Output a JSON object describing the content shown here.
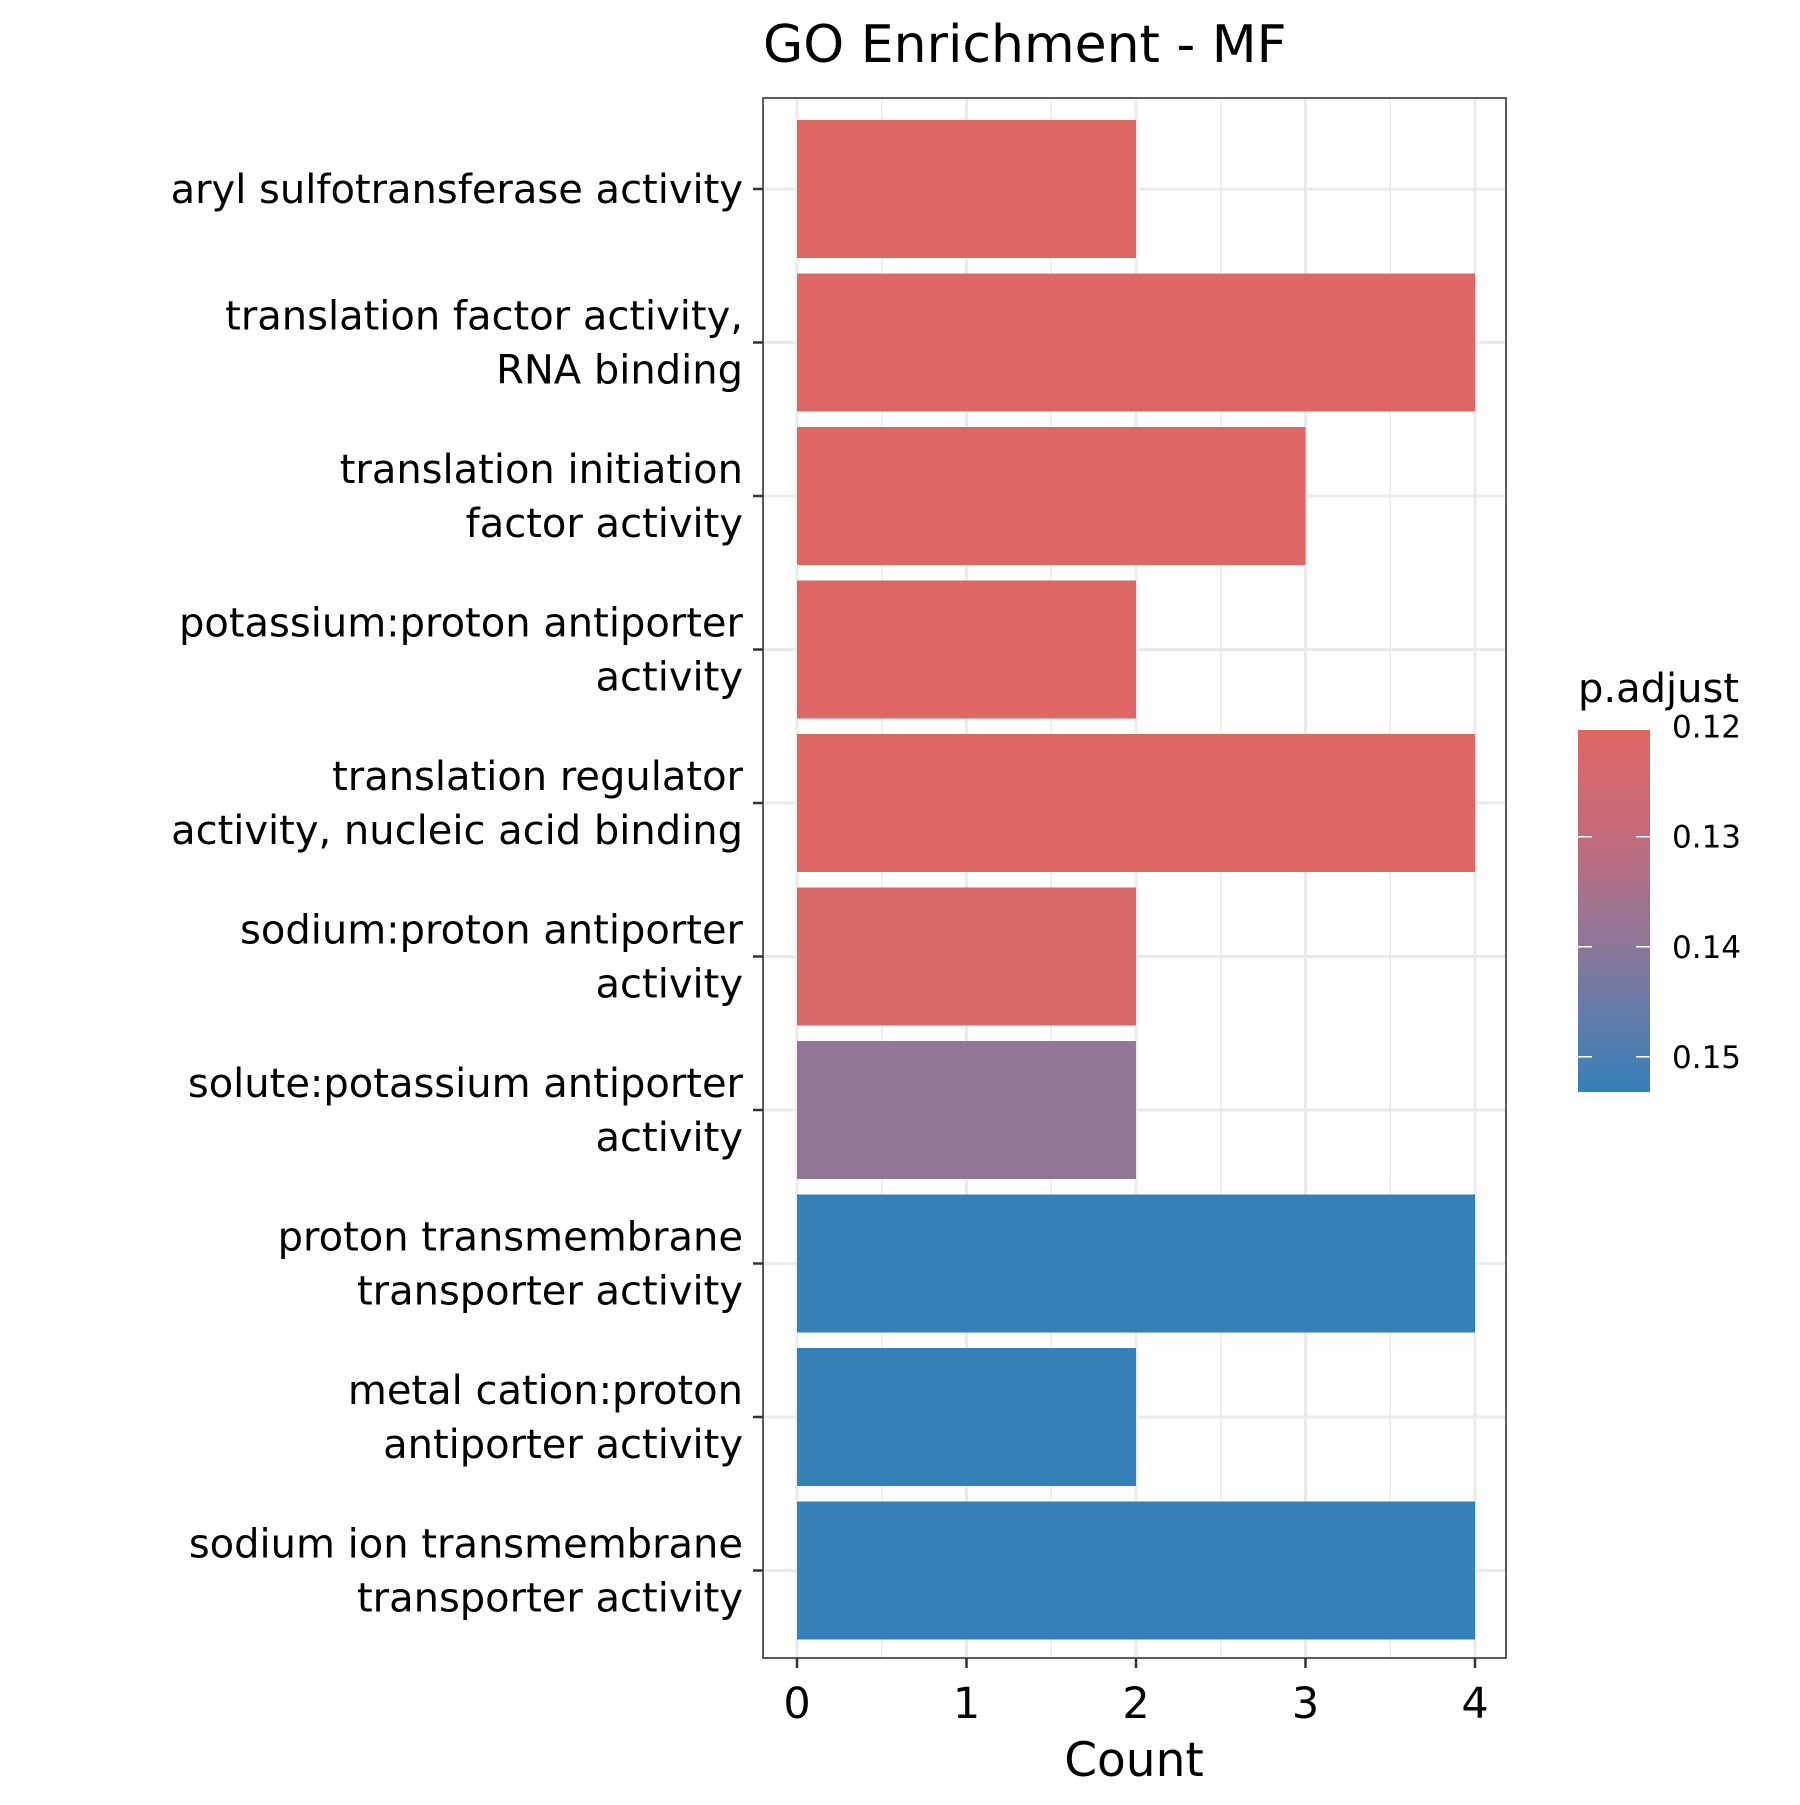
{
  "chart_data": {
    "type": "bar",
    "orientation": "horizontal",
    "title": "GO Enrichment - MF",
    "xlabel": "Count",
    "ylabel": "",
    "xlim": [
      0,
      4
    ],
    "x_ticks": [
      "0",
      "1",
      "2",
      "3",
      "4"
    ],
    "grid": true,
    "categories": [
      [
        "aryl sulfotransferase activity"
      ],
      [
        "translation factor activity,",
        "RNA binding"
      ],
      [
        "translation initiation",
        "factor activity"
      ],
      [
        "potassium:proton antiporter",
        "activity"
      ],
      [
        "translation regulator",
        "activity, nucleic acid binding"
      ],
      [
        "sodium:proton antiporter",
        "activity"
      ],
      [
        "solute:potassium antiporter",
        "activity"
      ],
      [
        "proton transmembrane",
        "transporter activity"
      ],
      [
        "metal cation:proton",
        "antiporter activity"
      ],
      [
        "sodium ion transmembrane",
        "transporter activity"
      ]
    ],
    "values": [
      2,
      4,
      3,
      2,
      4,
      2,
      2,
      4,
      2,
      4
    ],
    "p_adjust": [
      0.1208,
      0.1208,
      0.1208,
      0.1208,
      0.1208,
      0.1225,
      0.139,
      0.153,
      0.153,
      0.153
    ],
    "legend": {
      "title": "p.adjust",
      "position": "right",
      "ticks": [
        "0.12",
        "0.13",
        "0.14",
        "0.15"
      ],
      "tick_values": [
        0.12,
        0.13,
        0.14,
        0.15
      ],
      "range": [
        0.1203,
        0.1532
      ],
      "color_low_value": "#E06764",
      "color_high_value": "#3580BA"
    }
  }
}
